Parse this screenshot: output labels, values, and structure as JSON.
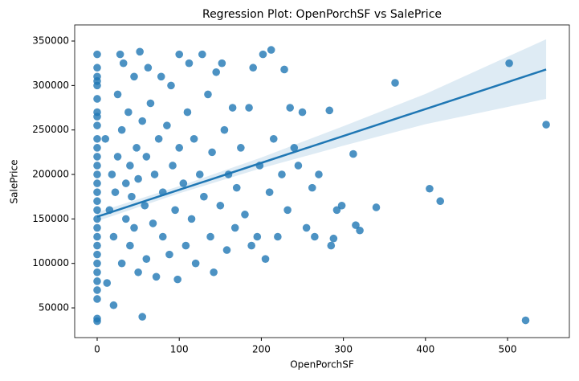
{
  "chart_data": {
    "type": "regplot",
    "title": "Regression Plot: OpenPorchSF vs SalePrice",
    "x_label": "OpenPorchSF",
    "y_label": "SalePrice",
    "color": "#1f77b4",
    "xlim": [
      -27.4,
      575.3
    ],
    "ylim": [
      16600,
      368100
    ],
    "xticks": [
      0,
      100,
      200,
      300,
      400,
      500
    ],
    "yticks": [
      50000,
      100000,
      150000,
      200000,
      250000,
      300000,
      350000
    ],
    "grid": false,
    "x": [
      0,
      0,
      0,
      0,
      0,
      0,
      0,
      0,
      0,
      0,
      0,
      0,
      0,
      0,
      0,
      0,
      0,
      0,
      0,
      0,
      0,
      0,
      0,
      0,
      0,
      0,
      0,
      0,
      0,
      0,
      10,
      12,
      15,
      18,
      20,
      20,
      22,
      25,
      25,
      28,
      30,
      30,
      32,
      35,
      35,
      38,
      40,
      40,
      42,
      45,
      45,
      48,
      50,
      50,
      52,
      55,
      55,
      58,
      60,
      60,
      62,
      65,
      68,
      70,
      72,
      75,
      78,
      80,
      80,
      85,
      88,
      90,
      92,
      95,
      98,
      100,
      100,
      105,
      108,
      110,
      112,
      115,
      118,
      120,
      125,
      128,
      130,
      135,
      138,
      140,
      142,
      145,
      150,
      152,
      155,
      158,
      160,
      165,
      168,
      170,
      175,
      180,
      185,
      188,
      190,
      195,
      198,
      202,
      205,
      210,
      212,
      215,
      220,
      225,
      228,
      232,
      235,
      240,
      245,
      250,
      255,
      262,
      265,
      270,
      283,
      285,
      288,
      292,
      298,
      312,
      315,
      320,
      340,
      363,
      405,
      418,
      502,
      522,
      547
    ],
    "y": [
      335000,
      320000,
      310000,
      305000,
      300000,
      285000,
      270000,
      265000,
      255000,
      240000,
      230000,
      220000,
      210000,
      200000,
      190000,
      180000,
      170000,
      160000,
      150000,
      140000,
      130000,
      120000,
      110000,
      100000,
      90000,
      80000,
      70000,
      60000,
      38000,
      35000,
      240000,
      78000,
      160000,
      200000,
      53000,
      130000,
      180000,
      290000,
      220000,
      335000,
      100000,
      250000,
      325000,
      150000,
      190000,
      270000,
      120000,
      210000,
      175000,
      310000,
      140000,
      230000,
      90000,
      195000,
      338000,
      40000,
      260000,
      165000,
      105000,
      220000,
      320000,
      280000,
      145000,
      200000,
      85000,
      240000,
      310000,
      130000,
      180000,
      255000,
      110000,
      300000,
      210000,
      160000,
      82000,
      335000,
      230000,
      190000,
      120000,
      270000,
      325000,
      150000,
      240000,
      100000,
      200000,
      335000,
      175000,
      290000,
      130000,
      225000,
      90000,
      315000,
      165000,
      325000,
      250000,
      115000,
      200000,
      275000,
      140000,
      185000,
      230000,
      155000,
      275000,
      120000,
      320000,
      130000,
      210000,
      335000,
      105000,
      180000,
      340000,
      240000,
      130000,
      200000,
      318000,
      160000,
      275000,
      230000,
      210000,
      270000,
      140000,
      185000,
      130000,
      200000,
      272000,
      120000,
      128000,
      160000,
      165000,
      223000,
      143000,
      137000,
      163000,
      303000,
      184000,
      170000,
      325000,
      36000,
      256000
    ],
    "regression": {
      "x": [
        0,
        100,
        200,
        300,
        400,
        547
      ],
      "y": [
        152500,
        182760,
        213020,
        243280,
        273540,
        318000
      ],
      "ci_lower": [
        147500,
        178760,
        207020,
        232280,
        256540,
        285000
      ],
      "ci_upper": [
        157500,
        186760,
        219020,
        254280,
        290540,
        352000
      ]
    }
  }
}
